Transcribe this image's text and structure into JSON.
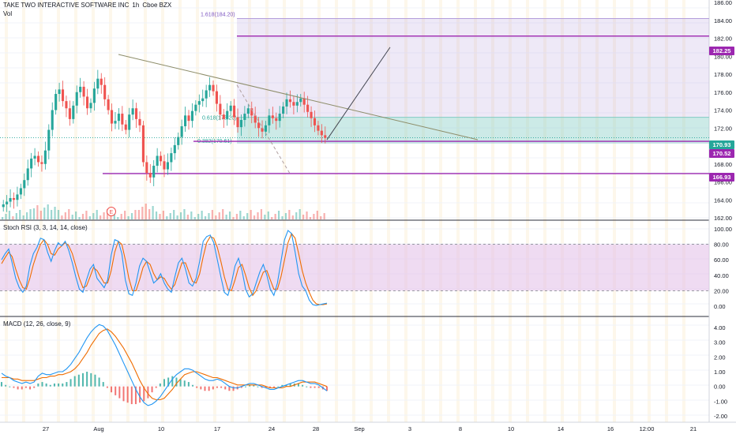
{
  "symbol": {
    "name": "TAKE TWO INTERACTIVE SOFTWARE INC",
    "interval": "1h",
    "exchange": "Cboe BZX",
    "vol_label": "Vol"
  },
  "colors": {
    "up": "#26a69a",
    "down": "#ef5350",
    "fib_zone": "#b39ddb",
    "fib_zone2": "#80cbc4",
    "hline": "#9c27b0",
    "trend": "#8d8d6a",
    "stoch_k": "#2196f3",
    "stoch_d": "#ef6c00",
    "macd": "#2196f3",
    "signal": "#ef6c00"
  },
  "x_axis": [
    "27",
    "Aug",
    "10",
    "17",
    "24",
    "28",
    "Sep",
    "3",
    "8",
    "10",
    "14",
    "16",
    "12:00",
    "21"
  ],
  "annotations": {
    "fib_top_label": "1.618(184.20)",
    "fib_mid_label": "0.618(173.20)",
    "fib_low_label": "0.382(170.61)",
    "earnings_marker": "E"
  },
  "price_tags": [
    {
      "text": "182.25",
      "color": "#9c27b0"
    },
    {
      "text": "170.93",
      "color": "#26a69a"
    },
    {
      "text": "170.52",
      "color": "#9c27b0"
    },
    {
      "text": "166.93",
      "color": "#9c27b0"
    }
  ],
  "chart_data": [
    {
      "type": "candlestick",
      "title": "TAKE TWO INTERACTIVE SOFTWARE INC, 1h, Cboe BZX",
      "y_ticks": [
        "186.00",
        "184.00",
        "182.00",
        "180.00",
        "178.00",
        "176.00",
        "174.00",
        "172.00",
        "170.00",
        "168.00",
        "166.00",
        "164.00",
        "162.00"
      ],
      "ylim": [
        161.5,
        186.5
      ],
      "horizontal_levels": [
        182.25,
        170.52,
        166.93
      ],
      "last_price": 170.93,
      "fib_levels": {
        "1.618": 184.2,
        "0.618": 173.2,
        "0.382": 170.61
      },
      "closes": [
        163.5,
        163.8,
        164.2,
        164.0,
        164.6,
        165.3,
        166.2,
        167.5,
        168.6,
        168.9,
        168.2,
        168.0,
        169.5,
        171.8,
        174.0,
        175.8,
        176.3,
        175.0,
        174.2,
        173.0,
        174.5,
        176.0,
        176.6,
        175.5,
        174.2,
        174.8,
        176.4,
        177.5,
        176.8,
        175.2,
        174.0,
        172.5,
        172.8,
        173.6,
        172.4,
        171.8,
        173.5,
        174.2,
        173.0,
        172.3,
        168.2,
        167.0,
        166.5,
        167.8,
        168.9,
        168.3,
        167.4,
        168.2,
        169.2,
        170.1,
        171.0,
        172.2,
        173.4,
        172.8,
        173.9,
        174.6,
        175.0,
        175.3,
        176.2,
        176.8,
        176.1,
        174.7,
        173.5,
        173.0,
        173.9,
        174.5,
        173.2,
        172.1,
        172.9,
        173.6,
        174.2,
        173.4,
        172.6,
        172.0,
        171.6,
        172.3,
        173.4,
        173.1,
        172.8,
        173.6,
        174.4,
        175.2,
        174.9,
        174.5,
        174.9,
        175.3,
        174.6,
        173.8,
        173.1,
        172.3,
        171.7,
        171.2,
        170.9
      ]
    },
    {
      "type": "bar",
      "title": "Vol"
    },
    {
      "type": "line",
      "title": "Stoch RSI (3, 3, 14, 14, close)",
      "y_ticks": [
        "100.00",
        "80.00",
        "60.00",
        "40.00",
        "20.00",
        "0.00"
      ],
      "ylim": [
        -5,
        108
      ],
      "band": [
        20,
        80
      ],
      "series": [
        {
          "values": [
            60,
            68,
            74,
            56,
            36,
            24,
            18,
            26,
            52,
            68,
            76,
            88,
            86,
            70,
            58,
            72,
            82,
            78,
            84,
            72,
            56,
            38,
            22,
            18,
            34,
            48,
            54,
            36,
            30,
            24,
            34,
            66,
            86,
            84,
            68,
            34,
            16,
            14,
            30,
            52,
            62,
            58,
            44,
            30,
            34,
            42,
            30,
            22,
            18,
            38,
            56,
            62,
            48,
            30,
            26,
            36,
            58,
            84,
            90,
            92,
            82,
            60,
            38,
            18,
            14,
            30,
            52,
            62,
            46,
            22,
            12,
            16,
            30,
            44,
            54,
            40,
            22,
            14,
            30,
            58,
            86,
            98,
            94,
            70,
            42,
            26,
            20,
            8,
            2,
            1,
            2,
            3,
            4
          ]
        },
        {
          "values": [
            55,
            63,
            70,
            64,
            48,
            34,
            24,
            22,
            36,
            54,
            68,
            80,
            86,
            80,
            68,
            66,
            74,
            78,
            82,
            78,
            68,
            52,
            36,
            24,
            26,
            38,
            50,
            46,
            38,
            30,
            30,
            46,
            70,
            84,
            80,
            60,
            36,
            20,
            20,
            34,
            50,
            58,
            54,
            42,
            34,
            38,
            36,
            28,
            22,
            28,
            42,
            56,
            56,
            44,
            32,
            30,
            42,
            64,
            82,
            90,
            88,
            76,
            58,
            38,
            22,
            20,
            34,
            50,
            54,
            40,
            24,
            14,
            20,
            32,
            44,
            46,
            34,
            22,
            22,
            38,
            60,
            82,
            94,
            88,
            68,
            46,
            30,
            18,
            8,
            3,
            2,
            2,
            3
          ]
        }
      ]
    },
    {
      "type": "line",
      "title": "MACD (12, 26, close, 9)",
      "y_ticks": [
        "4.00",
        "3.00",
        "2.00",
        "1.00",
        "0.00",
        "-1.00",
        "-2.00"
      ],
      "ylim": [
        -2.2,
        4.6
      ],
      "series": [
        {
          "values": [
            0.9,
            0.7,
            0.6,
            0.4,
            0.3,
            0.2,
            0.3,
            0.2,
            0.3,
            0.7,
            0.9,
            0.8,
            0.8,
            0.9,
            1.0,
            1.0,
            1.2,
            1.5,
            1.9,
            2.3,
            2.8,
            3.3,
            3.7,
            4.0,
            4.2,
            4.1,
            3.8,
            3.3,
            2.8,
            2.2,
            1.6,
            1.0,
            0.4,
            -0.2,
            -0.7,
            -1.1,
            -1.3,
            -1.2,
            -1.0,
            -0.7,
            -0.3,
            0.1,
            0.5,
            0.8,
            1.0,
            1.2,
            1.2,
            1.1,
            0.9,
            0.7,
            0.5,
            0.4,
            0.4,
            0.5,
            0.4,
            0.2,
            0.0,
            -0.1,
            -0.1,
            0.0,
            0.1,
            0.2,
            0.2,
            0.1,
            0.0,
            -0.1,
            -0.2,
            -0.2,
            -0.1,
            0.0,
            0.1,
            0.2,
            0.3,
            0.4,
            0.4,
            0.3,
            0.2,
            0.2,
            0.1,
            -0.1,
            -0.3
          ]
        },
        {
          "values": [
            0.6,
            0.6,
            0.6,
            0.5,
            0.5,
            0.4,
            0.4,
            0.4,
            0.4,
            0.5,
            0.6,
            0.6,
            0.7,
            0.7,
            0.8,
            0.8,
            0.9,
            1.0,
            1.2,
            1.5,
            1.9,
            2.3,
            2.8,
            3.2,
            3.6,
            3.8,
            3.9,
            3.7,
            3.4,
            3.0,
            2.6,
            2.1,
            1.6,
            1.0,
            0.4,
            -0.1,
            -0.5,
            -0.8,
            -0.9,
            -0.9,
            -0.8,
            -0.5,
            -0.2,
            0.2,
            0.5,
            0.8,
            0.9,
            1.0,
            1.0,
            0.9,
            0.8,
            0.7,
            0.6,
            0.6,
            0.5,
            0.4,
            0.3,
            0.2,
            0.1,
            0.1,
            0.1,
            0.1,
            0.1,
            0.1,
            0.1,
            0.0,
            -0.1,
            -0.1,
            -0.1,
            -0.1,
            0.0,
            0.0,
            0.1,
            0.2,
            0.3,
            0.3,
            0.3,
            0.3,
            0.2,
            0.1,
            0.0
          ]
        }
      ]
    }
  ]
}
